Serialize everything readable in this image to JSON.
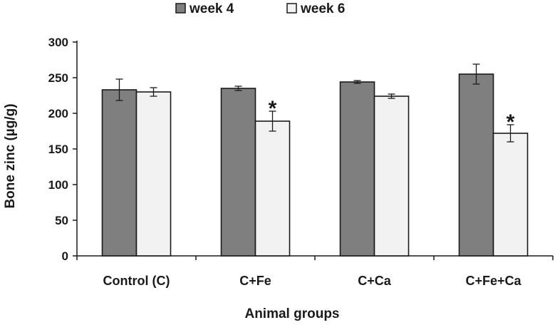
{
  "chart_data": {
    "type": "bar",
    "title": "",
    "xlabel": "Animal groups",
    "ylabel": "Bone zinc (µg/g)",
    "ylim": [
      0,
      300
    ],
    "yticks": [
      0,
      50,
      100,
      150,
      200,
      250,
      300
    ],
    "categories": [
      "Control (C)",
      "C+Fe",
      "C+Ca",
      "C+Fe+Ca"
    ],
    "series": [
      {
        "name": "week 4",
        "color": "#7f7f7f",
        "values": [
          233,
          235,
          244,
          255
        ],
        "errors": [
          15,
          3,
          2,
          14
        ],
        "annotations": [
          "",
          "",
          "",
          ""
        ]
      },
      {
        "name": "week 6",
        "color": "#f2f2f2",
        "values": [
          230,
          189,
          224,
          172
        ],
        "errors": [
          6,
          14,
          3,
          12
        ],
        "annotations": [
          "",
          "*",
          "",
          "*"
        ]
      }
    ],
    "legend_position": "top-center",
    "grid": false
  }
}
